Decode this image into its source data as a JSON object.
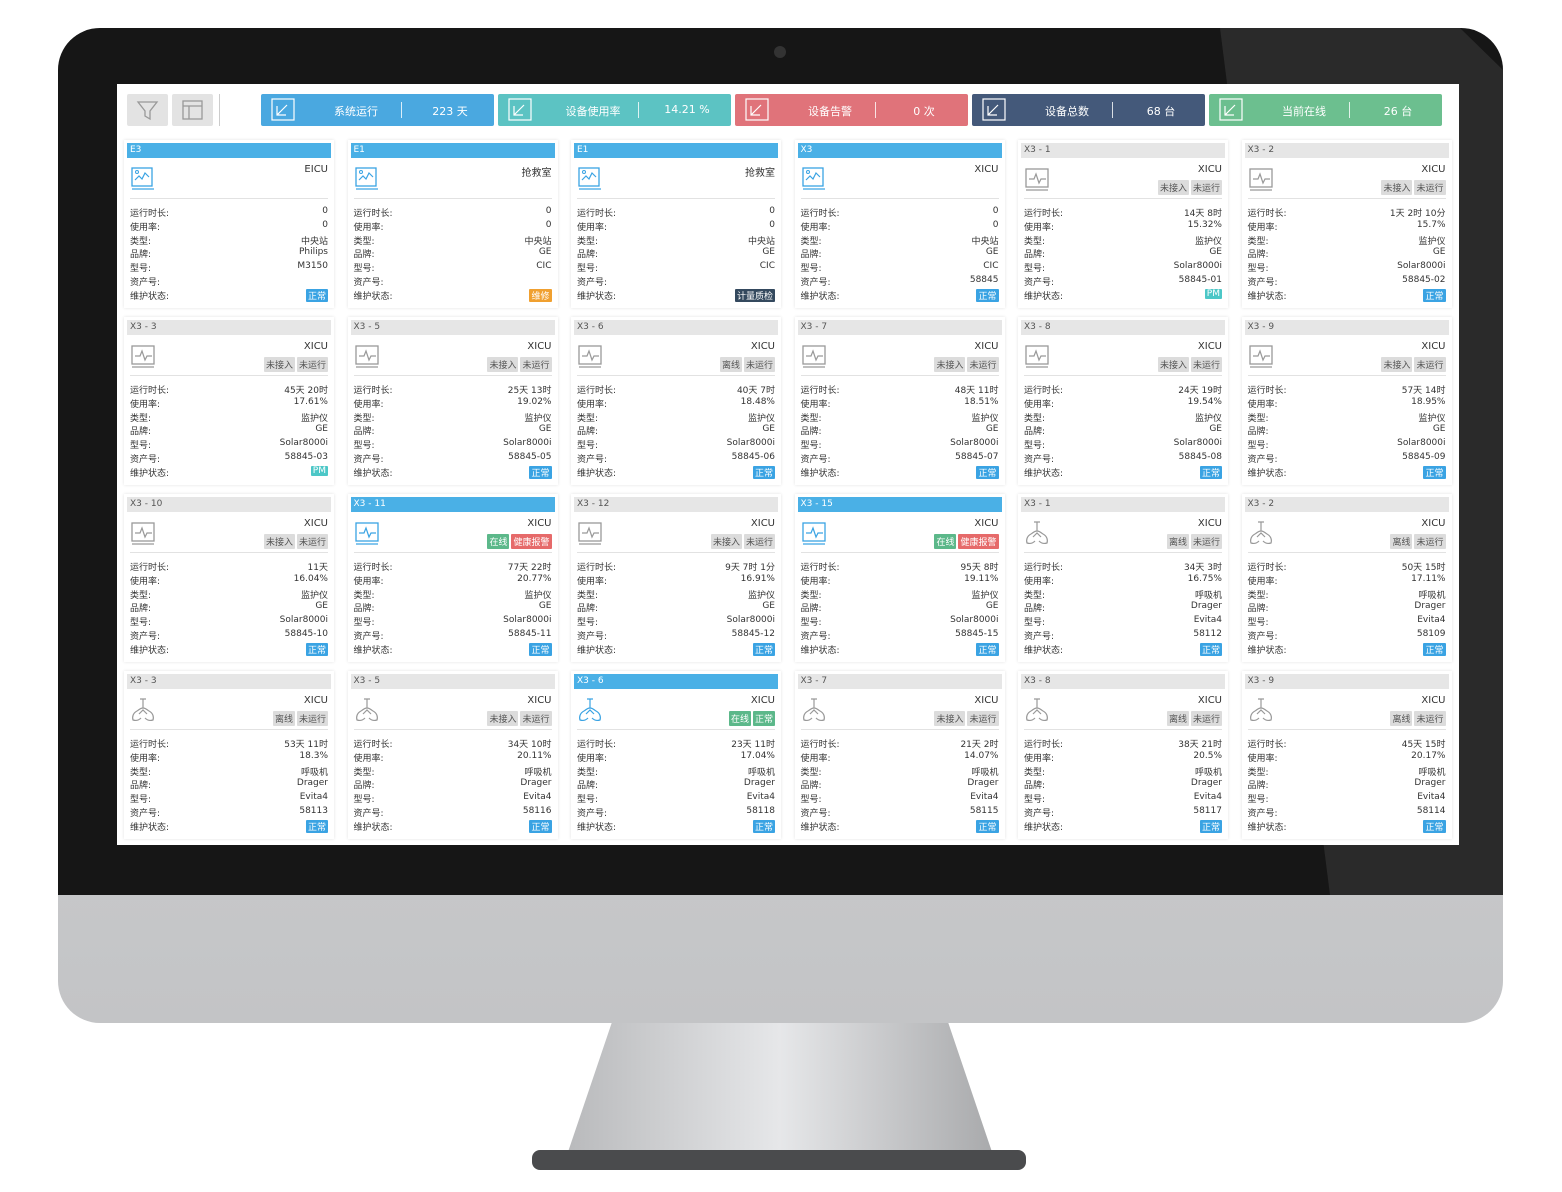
{
  "toolbar": {
    "stats": [
      {
        "label": "系统运行",
        "value": "223 天",
        "color": "#4aa8e0"
      },
      {
        "label": "设备使用率",
        "value": "14.21 %",
        "color": "#5cc3c3"
      },
      {
        "label": "设备告警",
        "value": "0 次",
        "color": "#e0737a"
      },
      {
        "label": "设备总数",
        "value": "68 台",
        "color": "#44597a"
      },
      {
        "label": "当前在线",
        "value": "26 台",
        "color": "#6cbf8f"
      }
    ]
  },
  "field_labels": [
    "运行时长:",
    "使用率:",
    "类型:",
    "品牌:",
    "型号:",
    "资产号:",
    "维护状态:"
  ],
  "cards": [
    {
      "id": "E3",
      "location": "EICU",
      "icon": "station",
      "highlight": true,
      "tags": [],
      "values": [
        "0",
        "0",
        "中央站",
        "Philips",
        "M3150",
        null
      ],
      "status": {
        "text": "正常",
        "color": "#3aa3e3"
      }
    },
    {
      "id": "E1",
      "location": "抢救室",
      "icon": "station",
      "highlight": true,
      "tags": [],
      "values": [
        "0",
        "0",
        "中央站",
        "GE",
        "CIC",
        null
      ],
      "status": {
        "text": "维修",
        "color": "#f0a030"
      }
    },
    {
      "id": "E1",
      "location": "抢救室",
      "icon": "station",
      "highlight": true,
      "tags": [],
      "values": [
        "0",
        "0",
        "中央站",
        "GE",
        "CIC",
        null
      ],
      "status": {
        "text": "计量质检",
        "color": "#34495e"
      }
    },
    {
      "id": "X3",
      "location": "XICU",
      "icon": "station",
      "highlight": true,
      "tags": [],
      "values": [
        "0",
        "0",
        "中央站",
        "GE",
        "CIC",
        "58845"
      ],
      "status": {
        "text": "正常",
        "color": "#3aa3e3"
      }
    },
    {
      "id": "X3 - 1",
      "location": "XICU",
      "icon": "monitor",
      "highlight": false,
      "tags": [
        {
          "text": "未接入",
          "color": "#dcdcdc"
        },
        {
          "text": "未运行",
          "color": "#dcdcdc"
        }
      ],
      "values": [
        "14天 8时",
        "15.32%",
        "监护仪",
        "GE",
        "Solar8000i",
        "58845-01"
      ],
      "status": {
        "text": "PM",
        "color": "#4cc7c7"
      }
    },
    {
      "id": "X3 - 2",
      "location": "XICU",
      "icon": "monitor",
      "highlight": false,
      "tags": [
        {
          "text": "未接入",
          "color": "#dcdcdc"
        },
        {
          "text": "未运行",
          "color": "#dcdcdc"
        }
      ],
      "values": [
        "1天 2时 10分",
        "15.7%",
        "监护仪",
        "GE",
        "Solar8000i",
        "58845-02"
      ],
      "status": {
        "text": "正常",
        "color": "#3aa3e3"
      }
    },
    {
      "id": "X3 - 3",
      "location": "XICU",
      "icon": "monitor",
      "highlight": false,
      "tags": [
        {
          "text": "未接入",
          "color": "#dcdcdc"
        },
        {
          "text": "未运行",
          "color": "#dcdcdc"
        }
      ],
      "values": [
        "45天 20时",
        "17.61%",
        "监护仪",
        "GE",
        "Solar8000i",
        "58845-03"
      ],
      "status": {
        "text": "PM",
        "color": "#4cc7c7"
      }
    },
    {
      "id": "X3 - 5",
      "location": "XICU",
      "icon": "monitor",
      "highlight": false,
      "tags": [
        {
          "text": "未接入",
          "color": "#dcdcdc"
        },
        {
          "text": "未运行",
          "color": "#dcdcdc"
        }
      ],
      "values": [
        "25天 13时",
        "19.02%",
        "监护仪",
        "GE",
        "Solar8000i",
        "58845-05"
      ],
      "status": {
        "text": "正常",
        "color": "#3aa3e3"
      }
    },
    {
      "id": "X3 - 6",
      "location": "XICU",
      "icon": "monitor",
      "highlight": false,
      "tags": [
        {
          "text": "离线",
          "color": "#dcdcdc"
        },
        {
          "text": "未运行",
          "color": "#dcdcdc"
        }
      ],
      "values": [
        "40天 7时",
        "18.48%",
        "监护仪",
        "GE",
        "Solar8000i",
        "58845-06"
      ],
      "status": {
        "text": "正常",
        "color": "#3aa3e3"
      }
    },
    {
      "id": "X3 - 7",
      "location": "XICU",
      "icon": "monitor",
      "highlight": false,
      "tags": [
        {
          "text": "未接入",
          "color": "#dcdcdc"
        },
        {
          "text": "未运行",
          "color": "#dcdcdc"
        }
      ],
      "values": [
        "48天 11时",
        "18.51%",
        "监护仪",
        "GE",
        "Solar8000i",
        "58845-07"
      ],
      "status": {
        "text": "正常",
        "color": "#3aa3e3"
      }
    },
    {
      "id": "X3 - 8",
      "location": "XICU",
      "icon": "monitor",
      "highlight": false,
      "tags": [
        {
          "text": "未接入",
          "color": "#dcdcdc"
        },
        {
          "text": "未运行",
          "color": "#dcdcdc"
        }
      ],
      "values": [
        "24天 19时",
        "19.54%",
        "监护仪",
        "GE",
        "Solar8000i",
        "58845-08"
      ],
      "status": {
        "text": "正常",
        "color": "#3aa3e3"
      }
    },
    {
      "id": "X3 - 9",
      "location": "XICU",
      "icon": "monitor",
      "highlight": false,
      "tags": [
        {
          "text": "未接入",
          "color": "#dcdcdc"
        },
        {
          "text": "未运行",
          "color": "#dcdcdc"
        }
      ],
      "values": [
        "57天 14时",
        "18.95%",
        "监护仪",
        "GE",
        "Solar8000i",
        "58845-09"
      ],
      "status": {
        "text": "正常",
        "color": "#3aa3e3"
      }
    },
    {
      "id": "X3 - 10",
      "location": "XICU",
      "icon": "monitor",
      "highlight": false,
      "tags": [
        {
          "text": "未接入",
          "color": "#dcdcdc"
        },
        {
          "text": "未运行",
          "color": "#dcdcdc"
        }
      ],
      "values": [
        "11天",
        "16.04%",
        "监护仪",
        "GE",
        "Solar8000i",
        "58845-10"
      ],
      "status": {
        "text": "正常",
        "color": "#3aa3e3"
      }
    },
    {
      "id": "X3 - 11",
      "location": "XICU",
      "icon": "monitor",
      "highlight": true,
      "tags": [
        {
          "text": "在线",
          "color": "#5cb88a"
        },
        {
          "text": "健康报警",
          "color": "#e66a6a"
        }
      ],
      "values": [
        "77天 22时",
        "20.77%",
        "监护仪",
        "GE",
        "Solar8000i",
        "58845-11"
      ],
      "status": {
        "text": "正常",
        "color": "#3aa3e3"
      }
    },
    {
      "id": "X3 - 12",
      "location": "XICU",
      "icon": "monitor",
      "highlight": false,
      "tags": [
        {
          "text": "未接入",
          "color": "#dcdcdc"
        },
        {
          "text": "未运行",
          "color": "#dcdcdc"
        }
      ],
      "values": [
        "9天 7时 1分",
        "16.91%",
        "监护仪",
        "GE",
        "Solar8000i",
        "58845-12"
      ],
      "status": {
        "text": "正常",
        "color": "#3aa3e3"
      }
    },
    {
      "id": "X3 - 15",
      "location": "XICU",
      "icon": "monitor",
      "highlight": true,
      "tags": [
        {
          "text": "在线",
          "color": "#5cb88a"
        },
        {
          "text": "健康报警",
          "color": "#e66a6a"
        }
      ],
      "values": [
        "95天 8时",
        "19.11%",
        "监护仪",
        "GE",
        "Solar8000i",
        "58845-15"
      ],
      "status": {
        "text": "正常",
        "color": "#3aa3e3"
      }
    },
    {
      "id": "X3 - 1",
      "location": "XICU",
      "icon": "ventilator",
      "highlight": false,
      "tags": [
        {
          "text": "离线",
          "color": "#dcdcdc"
        },
        {
          "text": "未运行",
          "color": "#dcdcdc"
        }
      ],
      "values": [
        "34天 3时",
        "16.75%",
        "呼吸机",
        "Drager",
        "Evita4",
        "58112"
      ],
      "status": {
        "text": "正常",
        "color": "#3aa3e3"
      }
    },
    {
      "id": "X3 - 2",
      "location": "XICU",
      "icon": "ventilator",
      "highlight": false,
      "tags": [
        {
          "text": "离线",
          "color": "#dcdcdc"
        },
        {
          "text": "未运行",
          "color": "#dcdcdc"
        }
      ],
      "values": [
        "50天 15时",
        "17.11%",
        "呼吸机",
        "Drager",
        "Evita4",
        "58109"
      ],
      "status": {
        "text": "正常",
        "color": "#3aa3e3"
      }
    },
    {
      "id": "X3 - 3",
      "location": "XICU",
      "icon": "ventilator",
      "highlight": false,
      "tags": [
        {
          "text": "离线",
          "color": "#dcdcdc"
        },
        {
          "text": "未运行",
          "color": "#dcdcdc"
        }
      ],
      "values": [
        "53天 11时",
        "18.3%",
        "呼吸机",
        "Drager",
        "Evita4",
        "58113"
      ],
      "status": {
        "text": "正常",
        "color": "#3aa3e3"
      }
    },
    {
      "id": "X3 - 5",
      "location": "XICU",
      "icon": "ventilator",
      "highlight": false,
      "tags": [
        {
          "text": "未接入",
          "color": "#dcdcdc"
        },
        {
          "text": "未运行",
          "color": "#dcdcdc"
        }
      ],
      "values": [
        "34天 10时",
        "20.11%",
        "呼吸机",
        "Drager",
        "Evita4",
        "58116"
      ],
      "status": {
        "text": "正常",
        "color": "#3aa3e3"
      }
    },
    {
      "id": "X3 - 6",
      "location": "XICU",
      "icon": "ventilator",
      "highlight": true,
      "tags": [
        {
          "text": "在线",
          "color": "#5cb88a"
        },
        {
          "text": "正常",
          "color": "#5cb88a"
        }
      ],
      "values": [
        "23天 11时",
        "17.04%",
        "呼吸机",
        "Drager",
        "Evita4",
        "58118"
      ],
      "status": {
        "text": "正常",
        "color": "#3aa3e3"
      }
    },
    {
      "id": "X3 - 7",
      "location": "XICU",
      "icon": "ventilator",
      "highlight": false,
      "tags": [
        {
          "text": "未接入",
          "color": "#dcdcdc"
        },
        {
          "text": "未运行",
          "color": "#dcdcdc"
        }
      ],
      "values": [
        "21天 2时",
        "14.07%",
        "呼吸机",
        "Drager",
        "Evita4",
        "58115"
      ],
      "status": {
        "text": "正常",
        "color": "#3aa3e3"
      }
    },
    {
      "id": "X3 - 8",
      "location": "XICU",
      "icon": "ventilator",
      "highlight": false,
      "tags": [
        {
          "text": "离线",
          "color": "#dcdcdc"
        },
        {
          "text": "未运行",
          "color": "#dcdcdc"
        }
      ],
      "values": [
        "38天 21时",
        "20.5%",
        "呼吸机",
        "Drager",
        "Evita4",
        "58117"
      ],
      "status": {
        "text": "正常",
        "color": "#3aa3e3"
      }
    },
    {
      "id": "X3 - 9",
      "location": "XICU",
      "icon": "ventilator",
      "highlight": false,
      "tags": [
        {
          "text": "离线",
          "color": "#dcdcdc"
        },
        {
          "text": "未运行",
          "color": "#dcdcdc"
        }
      ],
      "values": [
        "45天 15时",
        "20.17%",
        "呼吸机",
        "Drager",
        "Evita4",
        "58114"
      ],
      "status": {
        "text": "正常",
        "color": "#3aa3e3"
      }
    }
  ]
}
